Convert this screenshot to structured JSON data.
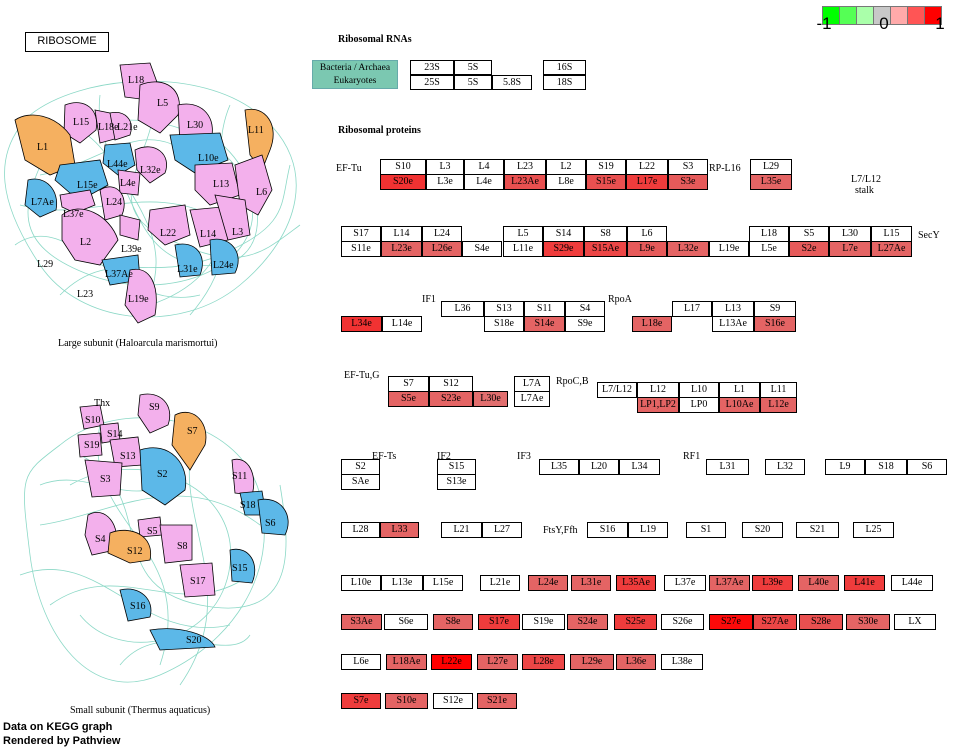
{
  "title": "RIBOSOME",
  "color_scale": {
    "min_label": "-1",
    "mid_label": "0",
    "max_label": "1",
    "colors": [
      "#00ff00",
      "#55ff55",
      "#aaffaa",
      "#c8c8c8",
      "#ffaaaa",
      "#ff5555",
      "#ff0000"
    ]
  },
  "ribosomal_rnas": {
    "header": "Ribosomal RNAs",
    "legend": [
      "Bacteria / Archaea",
      "Eukaryotes"
    ],
    "bact": [
      "23S",
      "5S",
      "16S"
    ],
    "euk": [
      "25S",
      "5S",
      "5.8S",
      "18S"
    ]
  },
  "ribosomal_proteins": {
    "header": "Ribosomal proteins"
  },
  "group_labels": {
    "eftu": "EF-Tu",
    "rpl16": "RP-L16",
    "l7l12_stalk_1": "L7/L12",
    "l7l12_stalk_2": "stalk",
    "secy": "SecY",
    "if1": "IF1",
    "rpoa": "RpoA",
    "eftug": "EF-Tu,G",
    "rpocb": "RpoC,B",
    "efts": "EF-Ts",
    "if2": "IF2",
    "if3": "IF3",
    "rf1": "RF1",
    "ftsy": "FtsY,Ffh"
  },
  "large_subunit": {
    "caption": "Large subunit (Haloarcula marismortui)",
    "labels": [
      "L18",
      "L5",
      "L15",
      "L18e",
      "L21e",
      "L30",
      "L11",
      "L1",
      "L44e",
      "L32e",
      "L10e",
      "L13",
      "L6",
      "L15e",
      "L4e",
      "L24",
      "L7Ae",
      "L37e",
      "L2",
      "L39e",
      "L22",
      "L14",
      "L3",
      "L29",
      "L37Ae",
      "L31e",
      "L24e",
      "L23",
      "L19e"
    ]
  },
  "small_subunit": {
    "caption": "Small subunit (Thermus aquaticus)",
    "labels": [
      "Thx",
      "S9",
      "S10",
      "S14",
      "S19",
      "S13",
      "S7",
      "S3",
      "S2",
      "S11",
      "S18",
      "S6",
      "S4",
      "S5",
      "S12",
      "S8",
      "S15",
      "S17",
      "S16",
      "S20"
    ]
  },
  "footer": {
    "line1": "Data on KEGG graph",
    "line2": "Rendered by Pathview"
  },
  "proteins": [
    {
      "id": "S10",
      "t": "S10",
      "v": null
    },
    {
      "id": "S20e",
      "t": "S20e",
      "v": 0.75
    },
    {
      "id": "L3",
      "t": "L3",
      "v": null
    },
    {
      "id": "L3e",
      "t": "L3e",
      "v": null
    },
    {
      "id": "L4",
      "t": "L4",
      "v": null
    },
    {
      "id": "L4e",
      "t": "L4e",
      "v": null
    },
    {
      "id": "L23",
      "t": "L23",
      "v": null
    },
    {
      "id": "L23Ae",
      "t": "L23Ae",
      "v": 0.6
    },
    {
      "id": "L2",
      "t": "L2",
      "v": null
    },
    {
      "id": "L8e",
      "t": "L8e",
      "v": null
    },
    {
      "id": "S19",
      "t": "S19",
      "v": null
    },
    {
      "id": "S15e",
      "t": "S15e",
      "v": 0.6
    },
    {
      "id": "L22",
      "t": "L22",
      "v": null
    },
    {
      "id": "L17e",
      "t": "L17e",
      "v": 0.7
    },
    {
      "id": "S3",
      "t": "S3",
      "v": null
    },
    {
      "id": "S3e",
      "t": "S3e",
      "v": 0.55
    },
    {
      "id": "L29",
      "t": "L29",
      "v": null
    },
    {
      "id": "L35e",
      "t": "L35e",
      "v": 0.5
    },
    {
      "id": "S17",
      "t": "S17",
      "v": null
    },
    {
      "id": "S11e",
      "t": "S11e",
      "v": null
    },
    {
      "id": "L14",
      "t": "L14",
      "v": null
    },
    {
      "id": "L23e",
      "t": "L23e",
      "v": 0.5
    },
    {
      "id": "L24",
      "t": "L24",
      "v": null
    },
    {
      "id": "L26e",
      "t": "L26e",
      "v": 0.5
    },
    {
      "id": "S4e",
      "t": "S4e",
      "v": null
    },
    {
      "id": "L5",
      "t": "L5",
      "v": null
    },
    {
      "id": "L11e",
      "t": "L11e",
      "v": null
    },
    {
      "id": "S14",
      "t": "S14",
      "v": null
    },
    {
      "id": "S29e",
      "t": "S29e",
      "v": 0.7
    },
    {
      "id": "S8",
      "t": "S8",
      "v": null
    },
    {
      "id": "S15Ae",
      "t": "S15Ae",
      "v": 0.65
    },
    {
      "id": "L6",
      "t": "L6",
      "v": null
    },
    {
      "id": "L9e",
      "t": "L9e",
      "v": 0.55
    },
    {
      "id": "L32e",
      "t": "L32e",
      "v": 0.5
    },
    {
      "id": "L19e",
      "t": "L19e",
      "v": null
    },
    {
      "id": "L18",
      "t": "L18",
      "v": null
    },
    {
      "id": "L5e",
      "t": "L5e",
      "v": null
    },
    {
      "id": "S5",
      "t": "S5",
      "v": null
    },
    {
      "id": "S2e",
      "t": "S2e",
      "v": 0.55
    },
    {
      "id": "L30",
      "t": "L30",
      "v": null
    },
    {
      "id": "L7e",
      "t": "L7e",
      "v": 0.5
    },
    {
      "id": "L15",
      "t": "L15",
      "v": null
    },
    {
      "id": "L27Ae",
      "t": "L27Ae",
      "v": 0.5
    },
    {
      "id": "L34e",
      "t": "L34e",
      "v": 0.75
    },
    {
      "id": "L14e",
      "t": "L14e",
      "v": null
    },
    {
      "id": "L36",
      "t": "L36",
      "v": null
    },
    {
      "id": "S13",
      "t": "S13",
      "v": null
    },
    {
      "id": "S18e",
      "t": "S18e",
      "v": null
    },
    {
      "id": "S11",
      "t": "S11",
      "v": null
    },
    {
      "id": "S14e",
      "t": "S14e",
      "v": 0.5
    },
    {
      "id": "S4",
      "t": "S4",
      "v": null
    },
    {
      "id": "S9e",
      "t": "S9e",
      "v": null
    },
    {
      "id": "L18e",
      "t": "L18e",
      "v": 0.5
    },
    {
      "id": "L17",
      "t": "L17",
      "v": null
    },
    {
      "id": "L13",
      "t": "L13",
      "v": null
    },
    {
      "id": "L13Ae",
      "t": "L13Ae",
      "v": null
    },
    {
      "id": "S9",
      "t": "S9",
      "v": null
    },
    {
      "id": "S16e",
      "t": "S16e",
      "v": 0.5
    },
    {
      "id": "S7",
      "t": "S7",
      "v": null
    },
    {
      "id": "S5e",
      "t": "S5e",
      "v": 0.5
    },
    {
      "id": "S12",
      "t": "S12",
      "v": null
    },
    {
      "id": "S23e",
      "t": "S23e",
      "v": 0.5
    },
    {
      "id": "L30e",
      "t": "L30e",
      "v": 0.45
    },
    {
      "id": "L7A",
      "t": "L7A",
      "v": null
    },
    {
      "id": "L7Ae",
      "t": "L7Ae",
      "v": null
    },
    {
      "id": "L7L12",
      "t": "L7/L12",
      "v": null
    },
    {
      "id": "L12",
      "t": "L12",
      "v": null
    },
    {
      "id": "LP1LP2",
      "t": "LP1,LP2",
      "v": 0.5
    },
    {
      "id": "L10",
      "t": "L10",
      "v": null
    },
    {
      "id": "LP0",
      "t": "LP0",
      "v": null
    },
    {
      "id": "L1",
      "t": "L1",
      "v": null
    },
    {
      "id": "L10Ae",
      "t": "L10Ae",
      "v": 0.5
    },
    {
      "id": "L11",
      "t": "L11",
      "v": null
    },
    {
      "id": "L12e",
      "t": "L12e",
      "v": 0.5
    },
    {
      "id": "S2",
      "t": "S2",
      "v": null
    },
    {
      "id": "SAe",
      "t": "SAe",
      "v": null
    },
    {
      "id": "S15",
      "t": "S15",
      "v": null
    },
    {
      "id": "S13e",
      "t": "S13e",
      "v": null
    },
    {
      "id": "L35",
      "t": "L35",
      "v": null
    },
    {
      "id": "L20",
      "t": "L20",
      "v": null
    },
    {
      "id": "L34",
      "t": "L34",
      "v": null
    },
    {
      "id": "L31",
      "t": "L31",
      "v": null
    },
    {
      "id": "L32",
      "t": "L32",
      "v": null
    },
    {
      "id": "L9",
      "t": "L9",
      "v": null
    },
    {
      "id": "S18",
      "t": "S18",
      "v": null
    },
    {
      "id": "S6",
      "t": "S6",
      "v": null
    },
    {
      "id": "L28",
      "t": "L28",
      "v": null
    },
    {
      "id": "L33",
      "t": "L33",
      "v": 0.5
    },
    {
      "id": "L21",
      "t": "L21",
      "v": null
    },
    {
      "id": "L27",
      "t": "L27",
      "v": null
    },
    {
      "id": "S16",
      "t": "S16",
      "v": null
    },
    {
      "id": "L19",
      "t": "L19",
      "v": null
    },
    {
      "id": "S1",
      "t": "S1",
      "v": null
    },
    {
      "id": "S20",
      "t": "S20",
      "v": null
    },
    {
      "id": "S21",
      "t": "S21",
      "v": null
    },
    {
      "id": "L25",
      "t": "L25",
      "v": null
    },
    {
      "id": "L10e",
      "t": "L10e",
      "v": null
    },
    {
      "id": "L13e",
      "t": "L13e",
      "v": null
    },
    {
      "id": "L15e",
      "t": "L15e",
      "v": null
    },
    {
      "id": "L21e",
      "t": "L21e",
      "v": null
    },
    {
      "id": "L24e",
      "t": "L24e",
      "v": 0.5
    },
    {
      "id": "L31e",
      "t": "L31e",
      "v": 0.5
    },
    {
      "id": "L35Ae",
      "t": "L35Ae",
      "v": 0.7
    },
    {
      "id": "L37e",
      "t": "L37e",
      "v": null
    },
    {
      "id": "L37Ae",
      "t": "L37Ae",
      "v": 0.5
    },
    {
      "id": "L39e",
      "t": "L39e",
      "v": 0.7
    },
    {
      "id": "L40e",
      "t": "L40e",
      "v": 0.5
    },
    {
      "id": "L41e",
      "t": "L41e",
      "v": 0.7
    },
    {
      "id": "L44e",
      "t": "L44e",
      "v": null
    },
    {
      "id": "S3Ae",
      "t": "S3Ae",
      "v": 0.5
    },
    {
      "id": "S6e",
      "t": "S6e",
      "v": null
    },
    {
      "id": "S8e",
      "t": "S8e",
      "v": 0.5
    },
    {
      "id": "S17e",
      "t": "S17e",
      "v": 0.7
    },
    {
      "id": "S19e",
      "t": "S19e",
      "v": null
    },
    {
      "id": "S24e",
      "t": "S24e",
      "v": 0.5
    },
    {
      "id": "S25e",
      "t": "S25e",
      "v": 0.7
    },
    {
      "id": "S26e",
      "t": "S26e",
      "v": null
    },
    {
      "id": "S27e",
      "t": "S27e",
      "v": 0.95
    },
    {
      "id": "S27Ae",
      "t": "S27Ae",
      "v": 0.65
    },
    {
      "id": "S28e",
      "t": "S28e",
      "v": 0.6
    },
    {
      "id": "S30e",
      "t": "S30e",
      "v": 0.5
    },
    {
      "id": "LX",
      "t": "LX",
      "v": null
    },
    {
      "id": "L6e",
      "t": "L6e",
      "v": null
    },
    {
      "id": "L18Ae",
      "t": "L18Ae",
      "v": 0.5
    },
    {
      "id": "L22e",
      "t": "L22e",
      "v": 1.0
    },
    {
      "id": "L27e",
      "t": "L27e",
      "v": 0.5
    },
    {
      "id": "L28e",
      "t": "L28e",
      "v": 0.65
    },
    {
      "id": "L29e",
      "t": "L29e",
      "v": 0.5
    },
    {
      "id": "L36e",
      "t": "L36e",
      "v": 0.5
    },
    {
      "id": "L38e",
      "t": "L38e",
      "v": null
    },
    {
      "id": "S7e",
      "t": "S7e",
      "v": 0.7
    },
    {
      "id": "S10e",
      "t": "S10e",
      "v": 0.5
    },
    {
      "id": "S12e",
      "t": "S12e",
      "v": null
    },
    {
      "id": "S21e",
      "t": "S21e",
      "v": 0.5
    }
  ]
}
